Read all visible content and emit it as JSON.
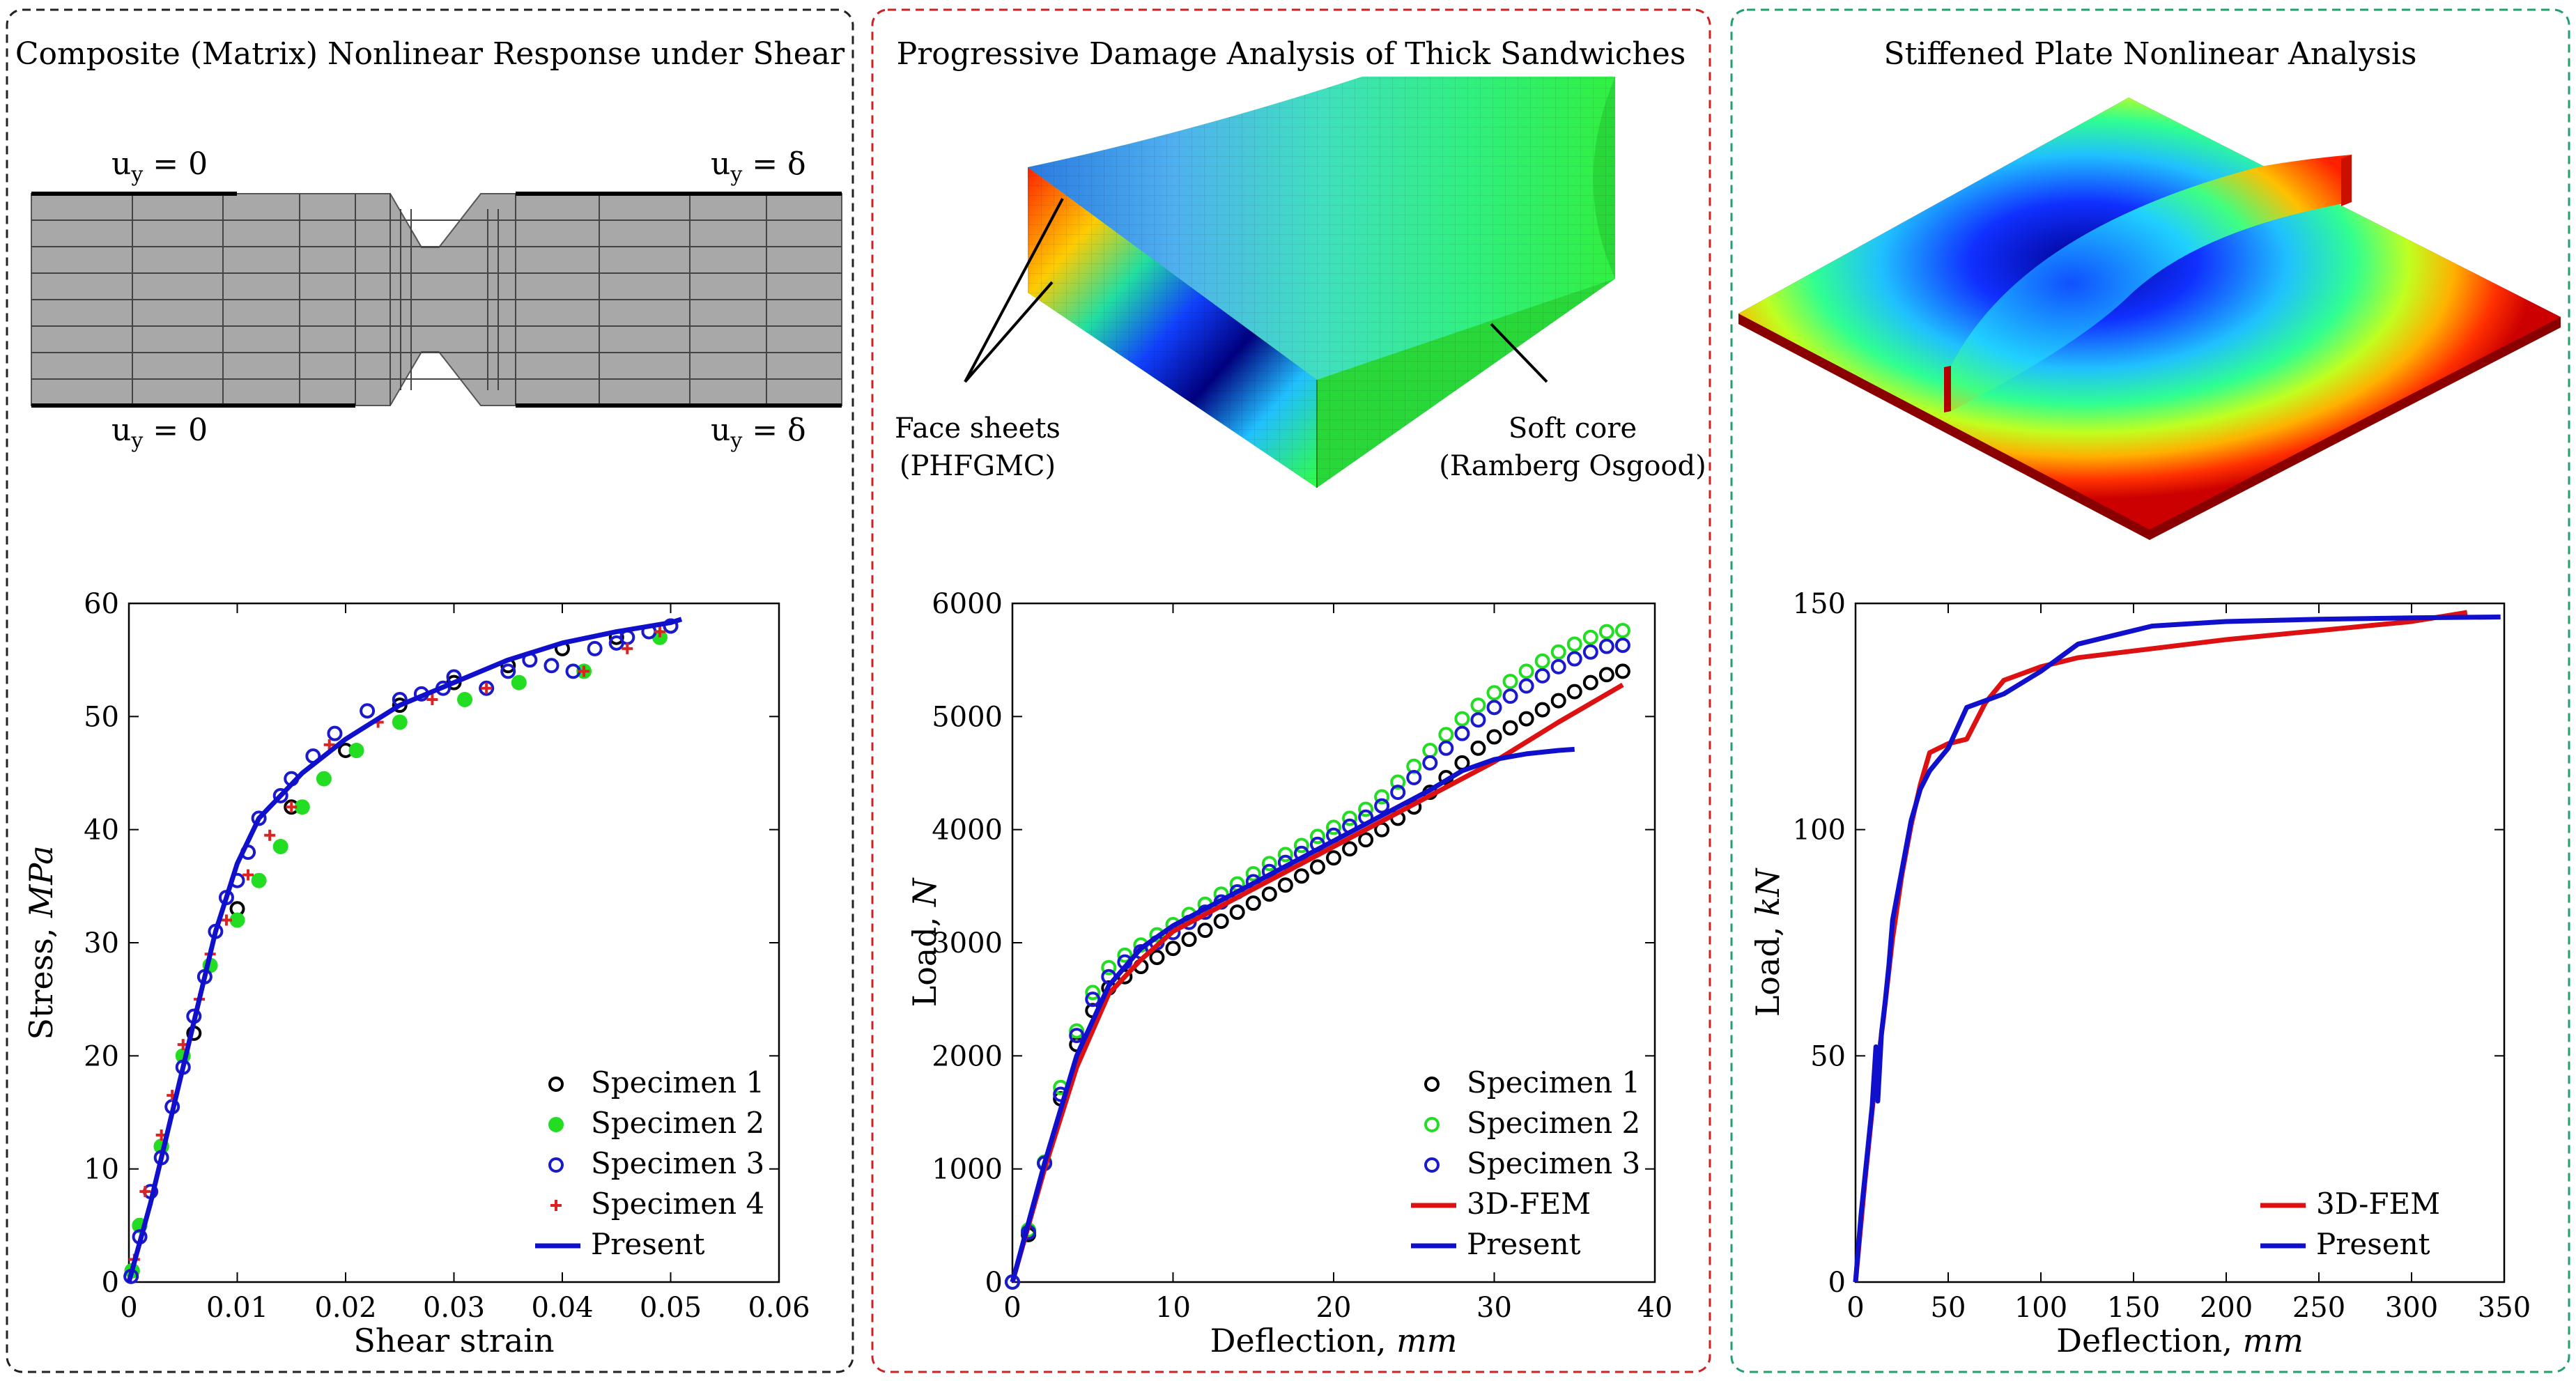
{
  "panels": [
    {
      "title": "Composite (Matrix) Nonlinear Response under Shear",
      "border_color": "#222222",
      "bc_labels": [
        "u",
        "y",
        "= 0",
        "u",
        "y",
        "= δ"
      ],
      "bc_top_left": "uy = 0",
      "bc_top_right": "uy = δ",
      "bc_bottom_left": "uy = 0",
      "bc_bottom_right": "uy = δ"
    },
    {
      "title": "Progressive Damage Analysis of Thick Sandwiches",
      "border_color": "#cc2222",
      "callout_left": [
        "Face sheets",
        "(PHFGMC)"
      ],
      "callout_right": [
        "Soft core",
        "(Ramberg Osgood)"
      ]
    },
    {
      "title": "Stiffened Plate Nonlinear Analysis",
      "border_color": "#22a06b"
    }
  ],
  "chart_data": [
    {
      "type": "scatter",
      "xlabel": "Shear strain",
      "ylabel": "Stress, MPa",
      "ylabel_plain": "Stress,",
      "ylabel_italic": "MPa",
      "xlim": [
        0,
        0.06
      ],
      "ylim": [
        0,
        60
      ],
      "xticks": [
        "0",
        "0.01",
        "0.02",
        "0.03",
        "0.04",
        "0.05",
        "0.06"
      ],
      "yticks": [
        "0",
        "10",
        "20",
        "30",
        "40",
        "50",
        "60"
      ],
      "legend_position": "bottom-right",
      "series": [
        {
          "name": "Specimen 1",
          "marker": "open-circle",
          "color": "#000000",
          "x": [
            0.0003,
            0.001,
            0.003,
            0.006,
            0.01,
            0.015,
            0.02,
            0.025,
            0.03,
            0.035,
            0.04,
            0.045,
            0.05
          ],
          "y": [
            1,
            5,
            12,
            22,
            33,
            42,
            47,
            51,
            53,
            54.5,
            56,
            57,
            58
          ]
        },
        {
          "name": "Specimen 2",
          "marker": "filled-circle",
          "color": "#22dd22",
          "x": [
            0.0003,
            0.001,
            0.003,
            0.005,
            0.0075,
            0.01,
            0.012,
            0.014,
            0.016,
            0.018,
            0.021,
            0.025,
            0.031,
            0.036,
            0.042,
            0.049
          ],
          "y": [
            1,
            5,
            12,
            20,
            28,
            32,
            35.5,
            38.5,
            42,
            44.5,
            47,
            49.5,
            51.5,
            53,
            54,
            57
          ]
        },
        {
          "name": "Specimen 3",
          "marker": "open-circle",
          "color": "#1a1acc",
          "x": [
            0.0002,
            0.001,
            0.002,
            0.003,
            0.004,
            0.005,
            0.006,
            0.007,
            0.008,
            0.009,
            0.01,
            0.011,
            0.012,
            0.014,
            0.015,
            0.017,
            0.019,
            0.022,
            0.025,
            0.027,
            0.029,
            0.03,
            0.033,
            0.035,
            0.037,
            0.039,
            0.041,
            0.043,
            0.045,
            0.046,
            0.048,
            0.05
          ],
          "y": [
            0.5,
            4,
            8,
            11,
            15.5,
            19,
            23.5,
            27,
            31,
            34,
            35.5,
            38,
            41,
            43,
            44.5,
            46.5,
            48.5,
            50.5,
            51.5,
            52,
            52.5,
            53.5,
            52.5,
            54,
            55,
            54.5,
            54,
            56,
            56.5,
            57,
            57.5,
            58
          ]
        },
        {
          "name": "Specimen 4",
          "marker": "plus",
          "color": "#dd2222",
          "x": [
            0.0005,
            0.0015,
            0.003,
            0.004,
            0.005,
            0.0065,
            0.0075,
            0.009,
            0.011,
            0.013,
            0.015,
            0.0185,
            0.023,
            0.028,
            0.033,
            0.042,
            0.046,
            0.049
          ],
          "y": [
            2,
            8,
            13,
            16.5,
            21,
            25,
            29,
            32,
            36,
            39.5,
            42,
            47.5,
            49.5,
            51.5,
            52.5,
            54,
            56,
            57.5
          ]
        },
        {
          "name": "Present",
          "marker": "line",
          "color": "#1010cc",
          "x": [
            0,
            0.002,
            0.004,
            0.006,
            0.008,
            0.01,
            0.012,
            0.016,
            0.02,
            0.025,
            0.03,
            0.035,
            0.04,
            0.045,
            0.05,
            0.051
          ],
          "y": [
            0,
            7,
            15,
            23,
            31,
            37,
            41,
            45,
            48,
            51,
            53,
            55,
            56.5,
            57.5,
            58.3,
            58.6
          ]
        }
      ]
    },
    {
      "type": "scatter",
      "xlabel": "Deflection, mm",
      "xlabel_plain": "Deflection,",
      "xlabel_italic": "mm",
      "ylabel": "Load, N",
      "ylabel_plain": "Load,",
      "ylabel_italic": "N",
      "xlim": [
        0,
        40
      ],
      "ylim": [
        0,
        6000
      ],
      "xticks": [
        "0",
        "10",
        "20",
        "30",
        "40"
      ],
      "yticks": [
        "0",
        "1000",
        "2000",
        "3000",
        "4000",
        "5000",
        "6000"
      ],
      "legend_position": "bottom-right",
      "series": [
        {
          "name": "Specimen 1",
          "marker": "open-circle",
          "color": "#000000",
          "x": [
            0,
            1,
            2,
            3,
            4,
            5,
            6,
            7,
            8,
            9,
            10,
            11,
            12,
            13,
            14,
            15,
            16,
            17,
            18,
            19,
            20,
            21,
            22,
            23,
            24,
            25,
            26,
            27,
            28,
            29,
            30,
            31,
            32,
            33,
            34,
            35,
            36,
            37,
            38
          ],
          "y": [
            0,
            420,
            1050,
            1620,
            2100,
            2400,
            2600,
            2700,
            2790,
            2870,
            2950,
            3030,
            3110,
            3190,
            3270,
            3350,
            3430,
            3510,
            3590,
            3670,
            3750,
            3830,
            3910,
            4000,
            4100,
            4200,
            4330,
            4460,
            4590,
            4720,
            4820,
            4900,
            4980,
            5060,
            5140,
            5220,
            5300,
            5370,
            5400
          ]
        },
        {
          "name": "Specimen 2",
          "marker": "open-circle",
          "color": "#22dd22",
          "x": [
            0,
            1,
            2,
            3,
            4,
            5,
            6,
            7,
            8,
            9,
            10,
            11,
            12,
            13,
            14,
            15,
            16,
            17,
            18,
            19,
            20,
            21,
            22,
            23,
            24,
            25,
            26,
            27,
            28,
            29,
            30,
            31,
            32,
            33,
            34,
            35,
            36,
            37,
            38
          ],
          "y": [
            0,
            460,
            1060,
            1720,
            2220,
            2560,
            2780,
            2890,
            2980,
            3070,
            3160,
            3250,
            3340,
            3430,
            3520,
            3610,
            3700,
            3780,
            3860,
            3940,
            4020,
            4100,
            4180,
            4290,
            4420,
            4560,
            4700,
            4840,
            4980,
            5100,
            5210,
            5310,
            5400,
            5490,
            5570,
            5640,
            5700,
            5750,
            5760
          ]
        },
        {
          "name": "Specimen 3",
          "marker": "open-circle",
          "color": "#1a1acc",
          "x": [
            0,
            1,
            2,
            3,
            4,
            5,
            6,
            7,
            8,
            9,
            10,
            11,
            12,
            13,
            14,
            15,
            16,
            17,
            18,
            19,
            20,
            21,
            22,
            23,
            24,
            25,
            26,
            27,
            28,
            29,
            30,
            31,
            32,
            33,
            34,
            35,
            36,
            37,
            38
          ],
          "y": [
            0,
            440,
            1050,
            1660,
            2180,
            2500,
            2700,
            2830,
            2920,
            3000,
            3090,
            3180,
            3270,
            3360,
            3450,
            3540,
            3630,
            3710,
            3790,
            3870,
            3950,
            4030,
            4110,
            4210,
            4330,
            4460,
            4590,
            4720,
            4850,
            4970,
            5080,
            5180,
            5270,
            5360,
            5440,
            5510,
            5570,
            5620,
            5630
          ]
        },
        {
          "name": "3D-FEM",
          "marker": "line",
          "color": "#dd1111",
          "x": [
            0,
            2,
            4,
            6,
            8,
            10,
            14,
            18,
            22,
            26,
            30,
            34,
            38
          ],
          "y": [
            0,
            1000,
            1900,
            2550,
            2850,
            3100,
            3400,
            3700,
            4000,
            4300,
            4600,
            4950,
            5280
          ]
        },
        {
          "name": "Present",
          "marker": "line",
          "color": "#1010cc",
          "x": [
            0,
            2,
            4,
            6,
            8,
            10,
            14,
            18,
            22,
            26,
            28,
            30,
            32,
            34,
            35
          ],
          "y": [
            0,
            1050,
            2000,
            2620,
            2950,
            3150,
            3450,
            3750,
            4050,
            4350,
            4520,
            4620,
            4670,
            4700,
            4710
          ]
        }
      ]
    },
    {
      "type": "line",
      "xlabel": "Deflection, mm",
      "xlabel_plain": "Deflection,",
      "xlabel_italic": "mm",
      "ylabel": "Load, kN",
      "ylabel_plain": "Load,",
      "ylabel_italic": "kN",
      "xlim": [
        0,
        350
      ],
      "ylim": [
        0,
        150
      ],
      "xticks": [
        "0",
        "50",
        "100",
        "150",
        "200",
        "250",
        "300",
        "350"
      ],
      "yticks": [
        "0",
        "50",
        "100",
        "150"
      ],
      "legend_position": "bottom-right",
      "series": [
        {
          "name": "3D-FEM",
          "marker": "line",
          "color": "#dd1111",
          "x": [
            0,
            5,
            10,
            15,
            20,
            25,
            30,
            35,
            40,
            50,
            60,
            70,
            80,
            100,
            120,
            160,
            200,
            250,
            300,
            330
          ],
          "y": [
            0,
            22,
            42,
            58,
            76,
            90,
            101,
            110,
            117,
            119,
            120,
            128,
            133,
            136,
            138,
            140,
            142,
            144,
            146,
            148
          ]
        },
        {
          "name": "Present",
          "marker": "line",
          "color": "#1010cc",
          "x": [
            0,
            3,
            6,
            9,
            11,
            12,
            14,
            16,
            18,
            20,
            25,
            30,
            35,
            40,
            50,
            60,
            80,
            100,
            120,
            160,
            200,
            250,
            300,
            348
          ],
          "y": [
            0,
            15,
            27,
            39,
            52,
            40,
            55,
            62,
            70,
            80,
            91,
            102,
            109,
            113,
            118,
            127,
            130,
            135,
            141,
            145,
            146,
            146.5,
            146.8,
            147
          ]
        }
      ]
    }
  ]
}
